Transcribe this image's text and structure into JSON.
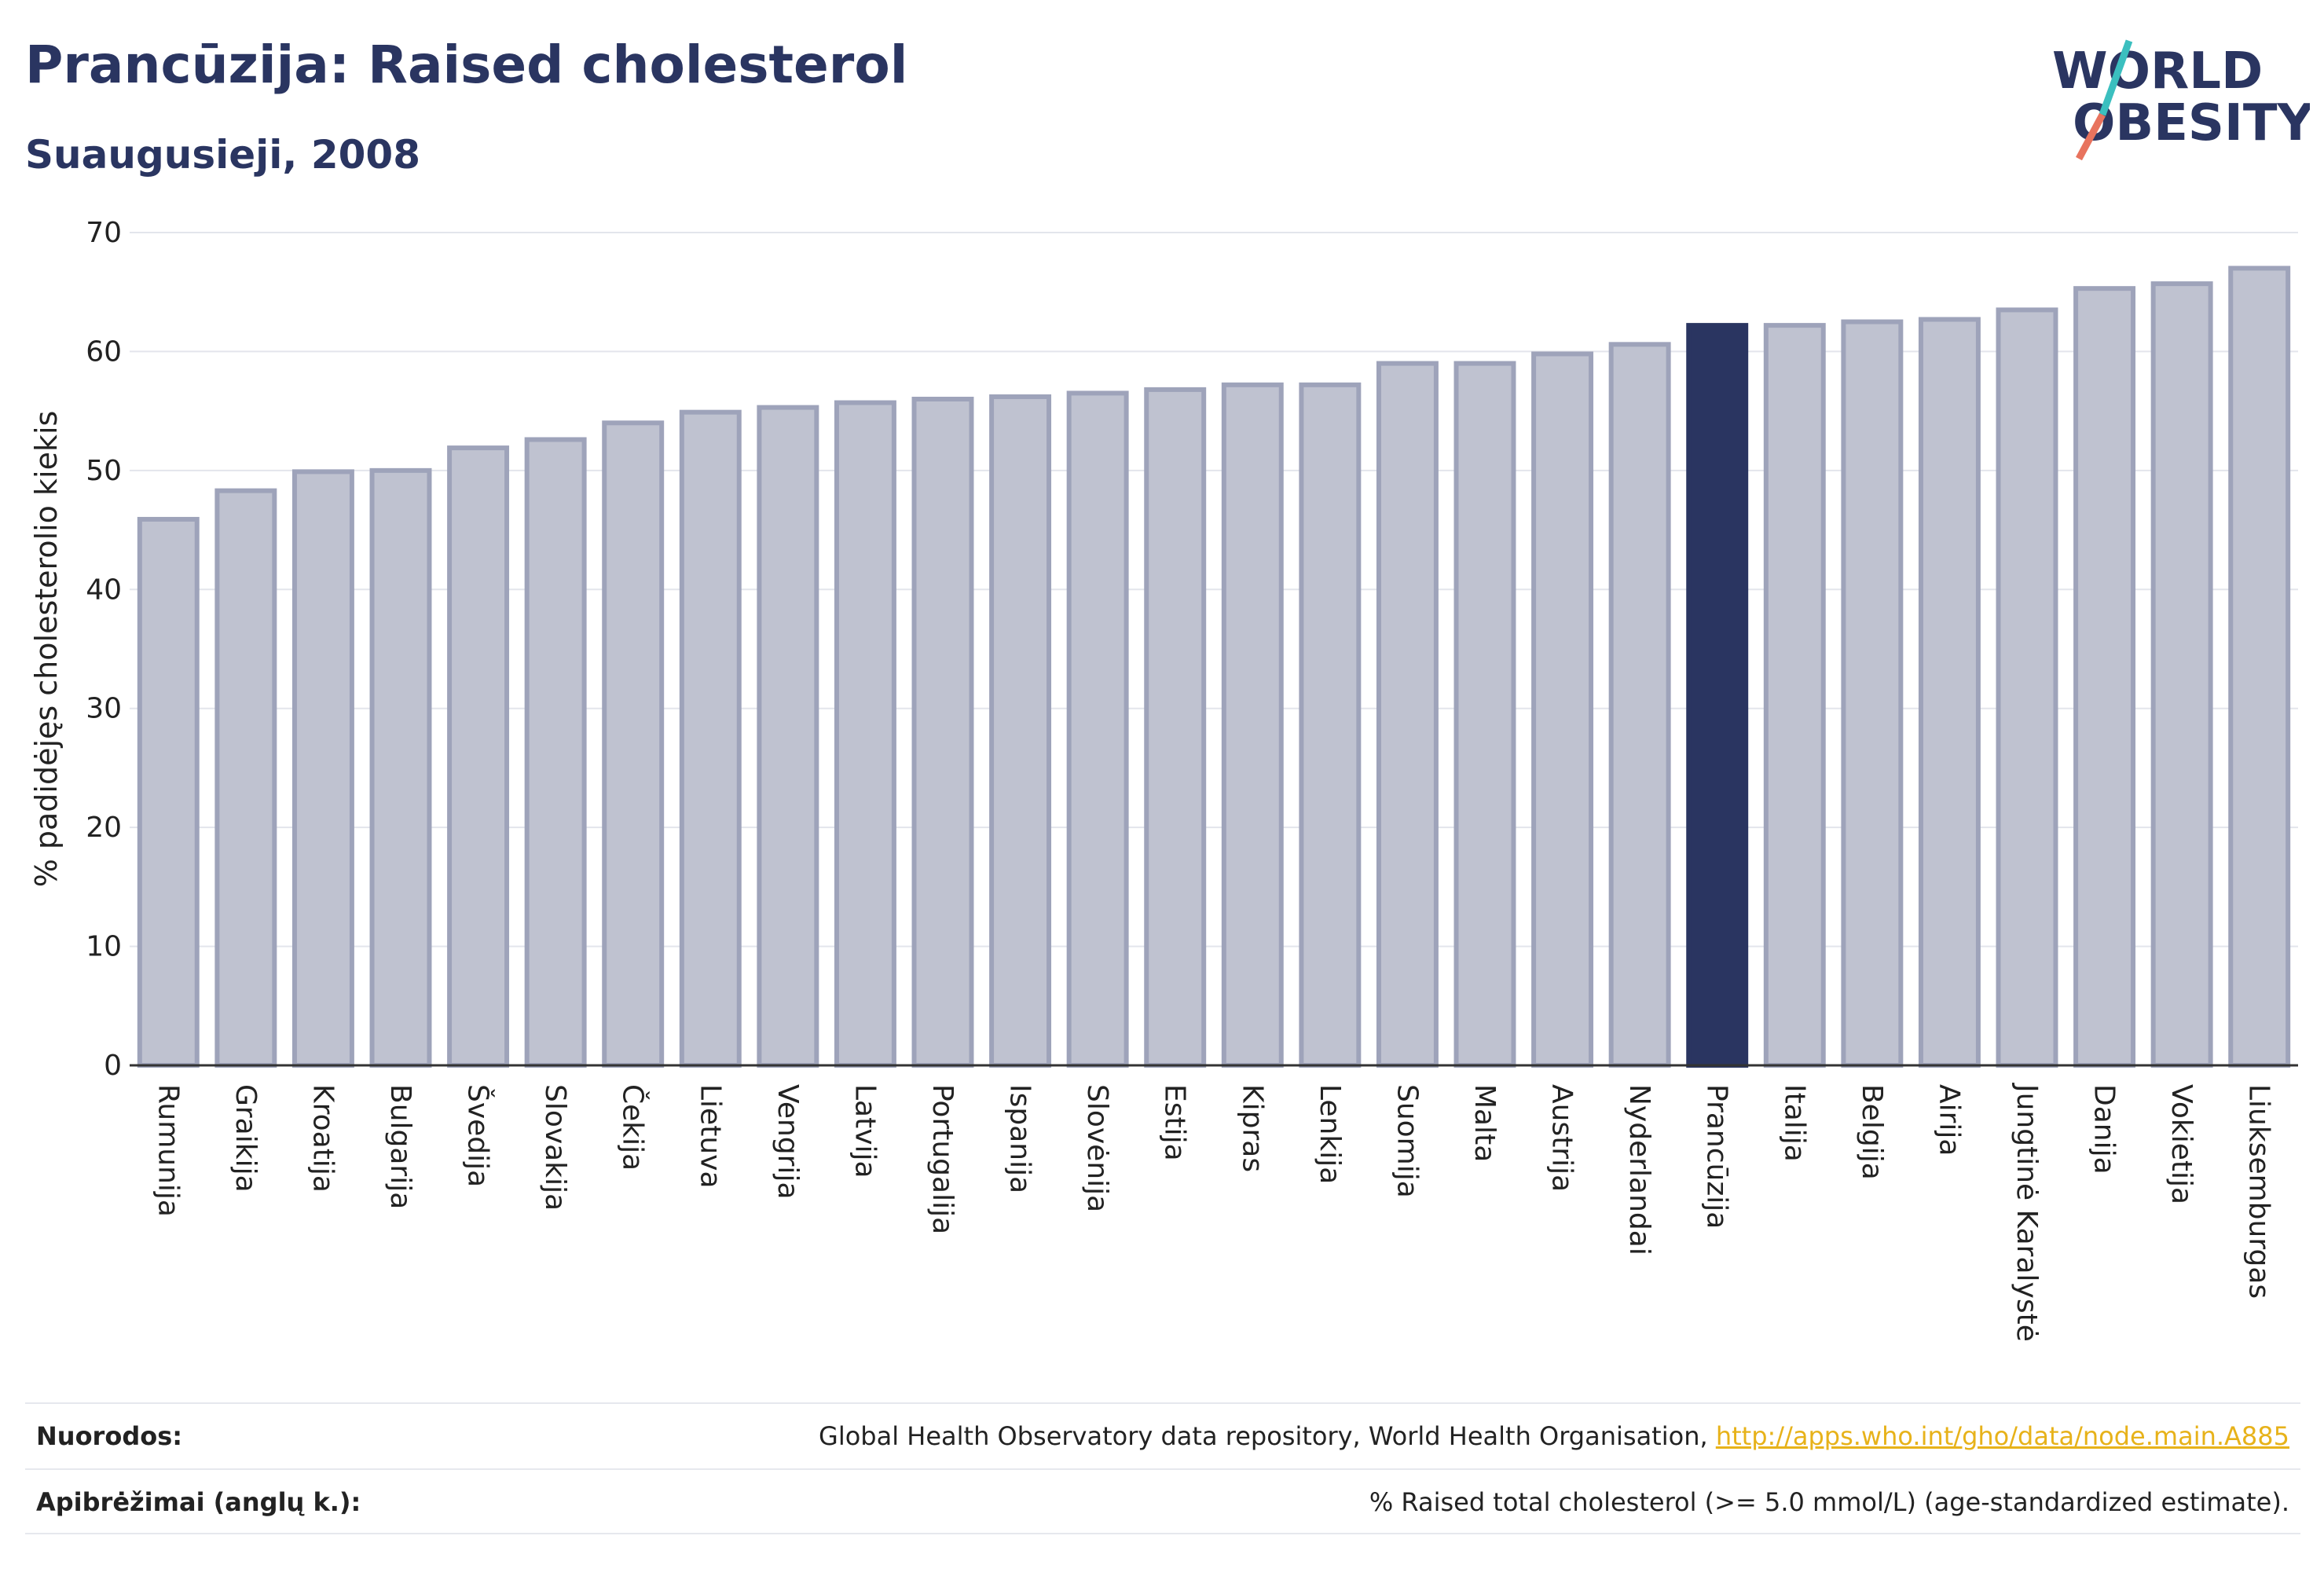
{
  "header": {
    "title": "Prancūzija: Raised cholesterol",
    "subtitle": "Suaugusieji, 2008"
  },
  "logo": {
    "line1": "WORLD",
    "line2": "OBESITY",
    "slash_colors": [
      "#3bbfbf",
      "#e8735e"
    ]
  },
  "colors": {
    "bar": "#bfc2d0",
    "bar_border": "#9ea3ba",
    "highlight": "#2a3561",
    "grid": "#e3e5ec",
    "axis": "#333333"
  },
  "chart_data": {
    "type": "bar",
    "ylabel": "% padidėjęs cholesterolio kiekis",
    "ylim": [
      0,
      70
    ],
    "yticks": [
      0,
      10,
      20,
      30,
      40,
      50,
      60,
      70
    ],
    "highlight": "Prancūzija",
    "categories": [
      "Rumunija",
      "Graikija",
      "Kroatija",
      "Bulgarija",
      "Švedija",
      "Slovakija",
      "Čekija",
      "Lietuva",
      "Vengrija",
      "Latvija",
      "Portugalija",
      "Ispanija",
      "Slovėnija",
      "Estija",
      "Kipras",
      "Lenkija",
      "Suomija",
      "Malta",
      "Austrija",
      "Nyderlandai",
      "Prancūzija",
      "Italija",
      "Belgija",
      "Airija",
      "Jungtinė Karalystė",
      "Danija",
      "Vokietija",
      "Liuksemburgas"
    ],
    "values": [
      45.9,
      48.3,
      49.9,
      50.0,
      51.9,
      52.6,
      54.0,
      54.9,
      55.3,
      55.7,
      56.0,
      56.2,
      56.5,
      56.8,
      57.2,
      57.2,
      59.0,
      59.0,
      59.8,
      60.6,
      62.2,
      62.2,
      62.5,
      62.7,
      63.5,
      65.3,
      65.7,
      67.0
    ]
  },
  "footer": {
    "sources_label": "Nuorodos:",
    "sources_text": "Global Health Observatory data repository, World Health Organisation, ",
    "sources_link": "http://apps.who.int/gho/data/node.main.A885",
    "definitions_label": "Apibrėžimai (anglų k.):",
    "definitions_text": "% Raised total cholesterol (>= 5.0 mmol/L) (age-standardized estimate)."
  }
}
